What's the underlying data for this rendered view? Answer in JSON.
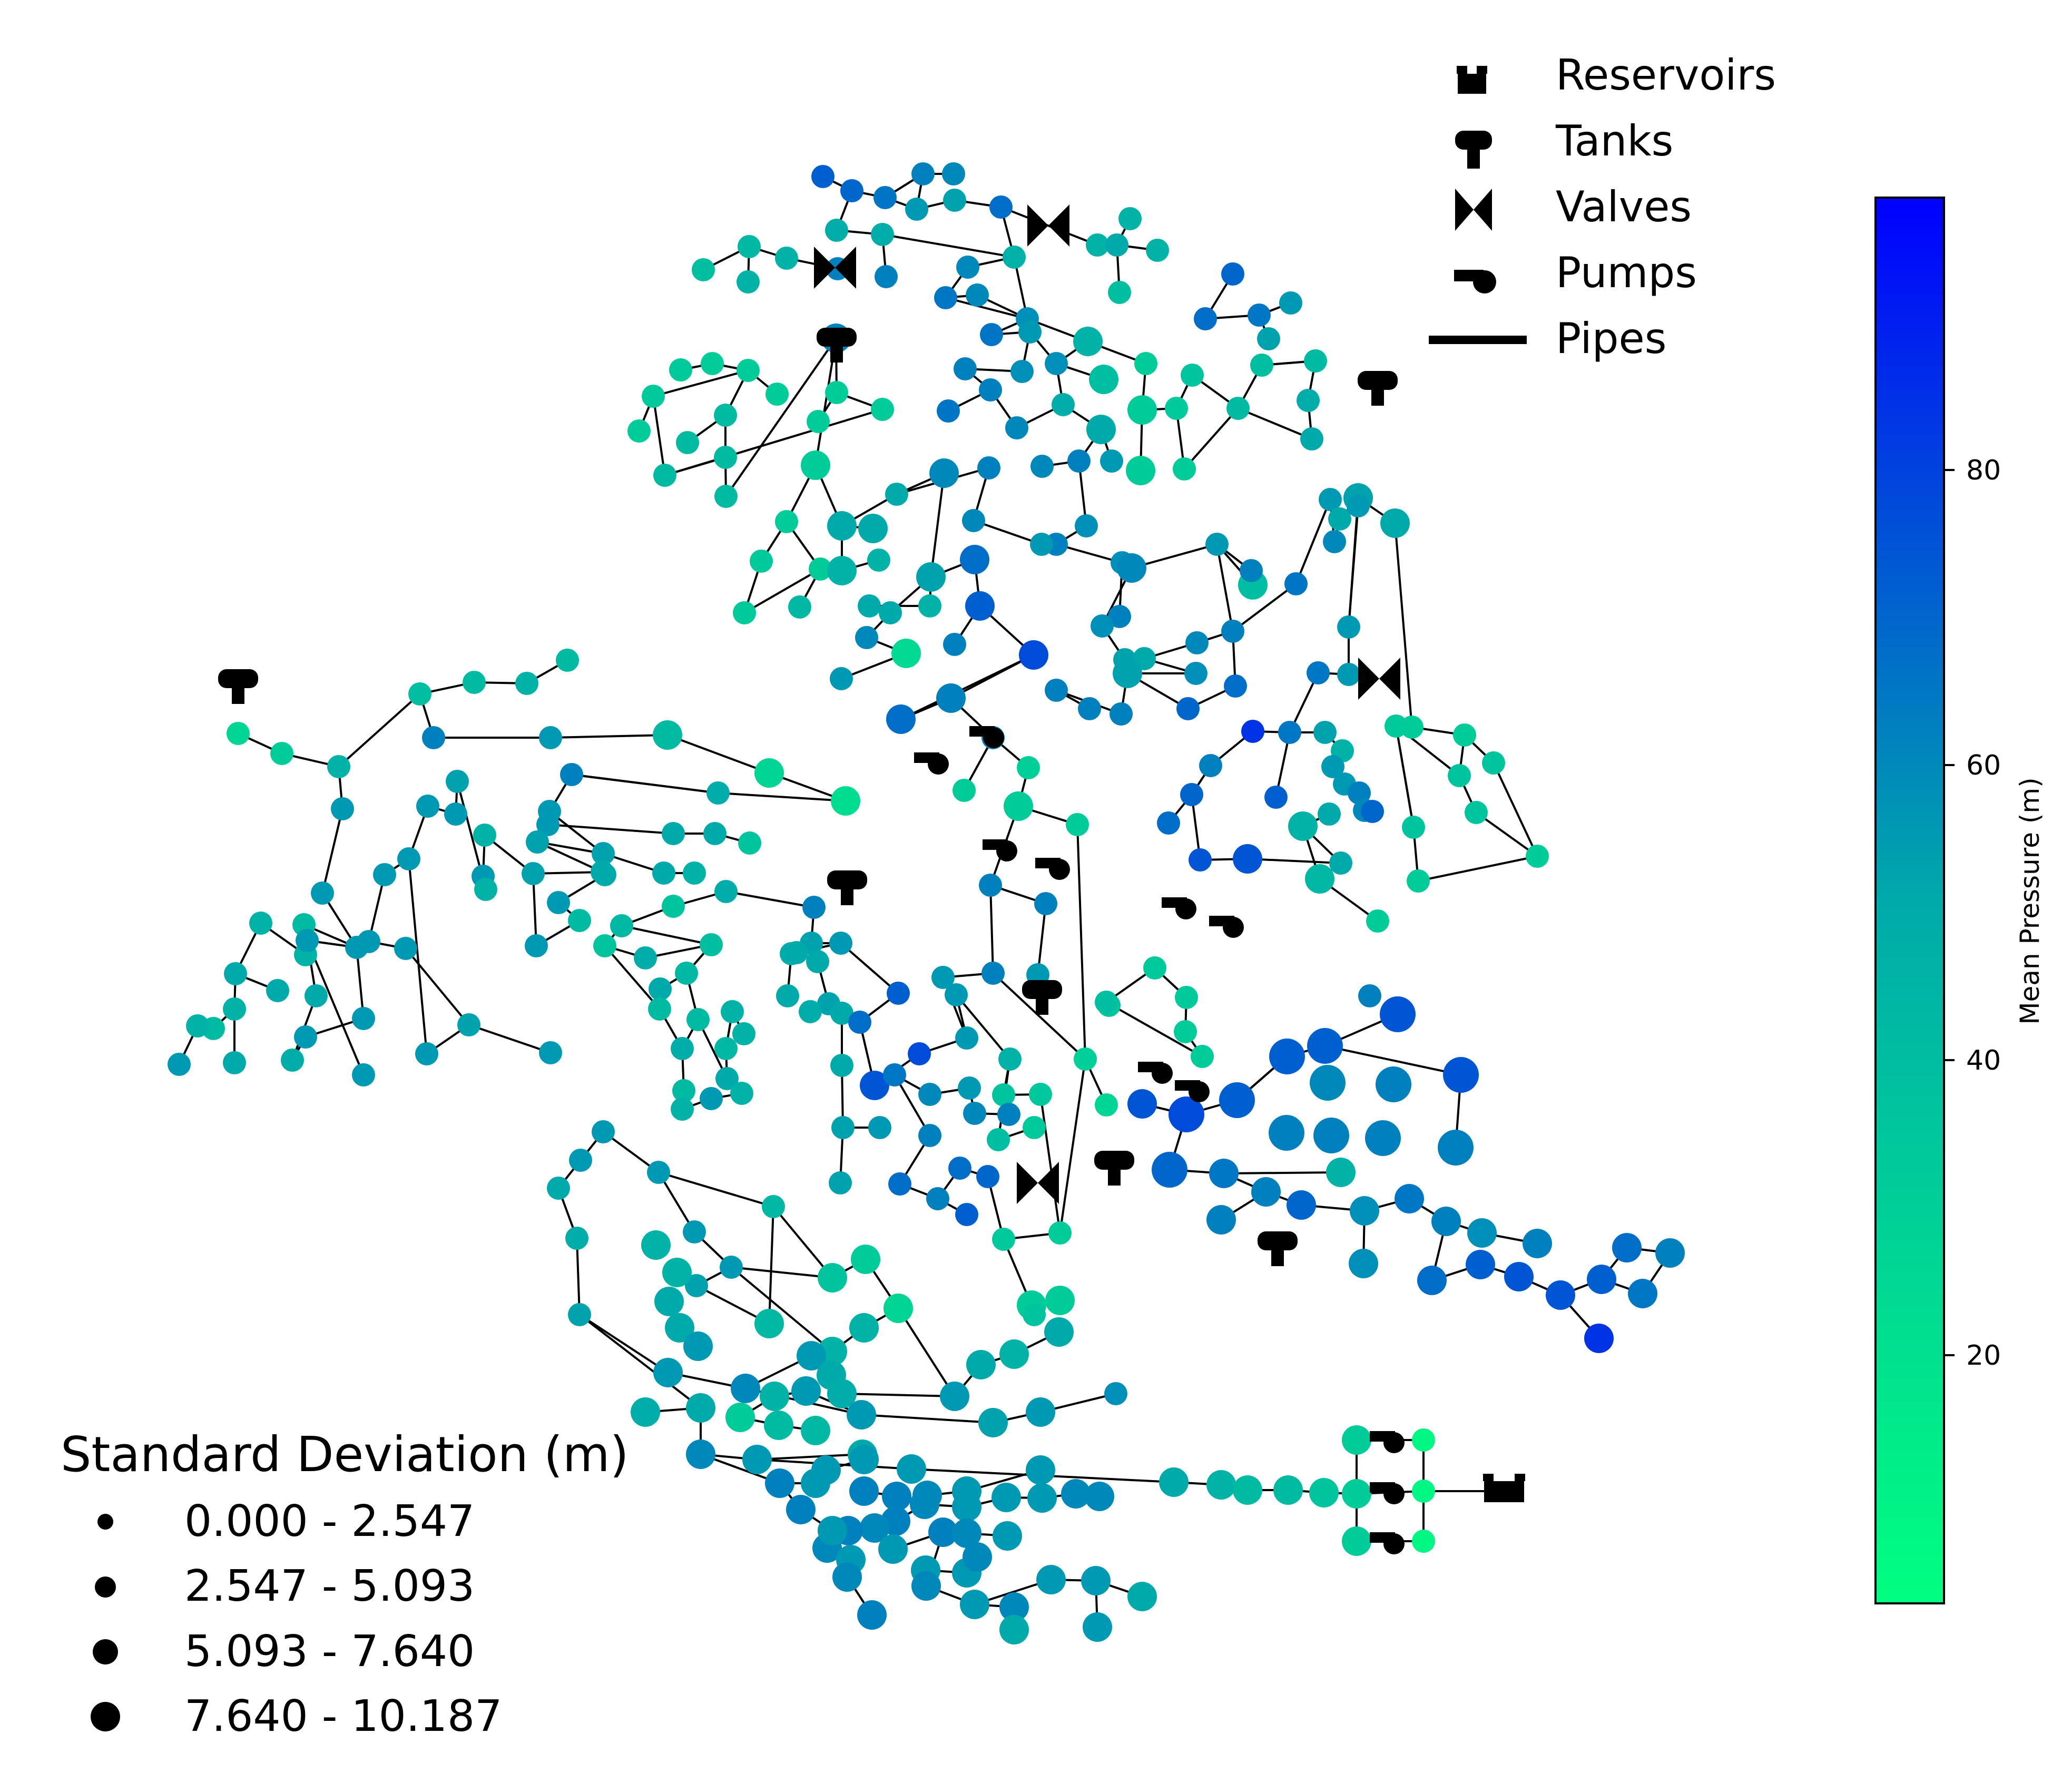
{
  "legend": {
    "items": [
      {
        "label": "Reservoirs",
        "icon": "reservoir-icon"
      },
      {
        "label": "Tanks",
        "icon": "tank-icon"
      },
      {
        "label": "Valves",
        "icon": "valve-icon"
      },
      {
        "label": "Pumps",
        "icon": "pump-icon"
      },
      {
        "label": "Pipes",
        "icon": "pipe-line"
      }
    ]
  },
  "size_legend": {
    "title": "Standard Deviation (m)",
    "bins": [
      "0.000 - 2.547",
      "2.547 - 5.093",
      "5.093 - 7.640",
      "7.640 - 10.187"
    ]
  },
  "colorbar": {
    "label": "Mean Pressure (m)",
    "ticks": [
      "20",
      "40",
      "60",
      "80"
    ],
    "colors": {
      "low": "#00ff80",
      "mid": "#00aaaa",
      "high": "#0000ff"
    }
  }
}
